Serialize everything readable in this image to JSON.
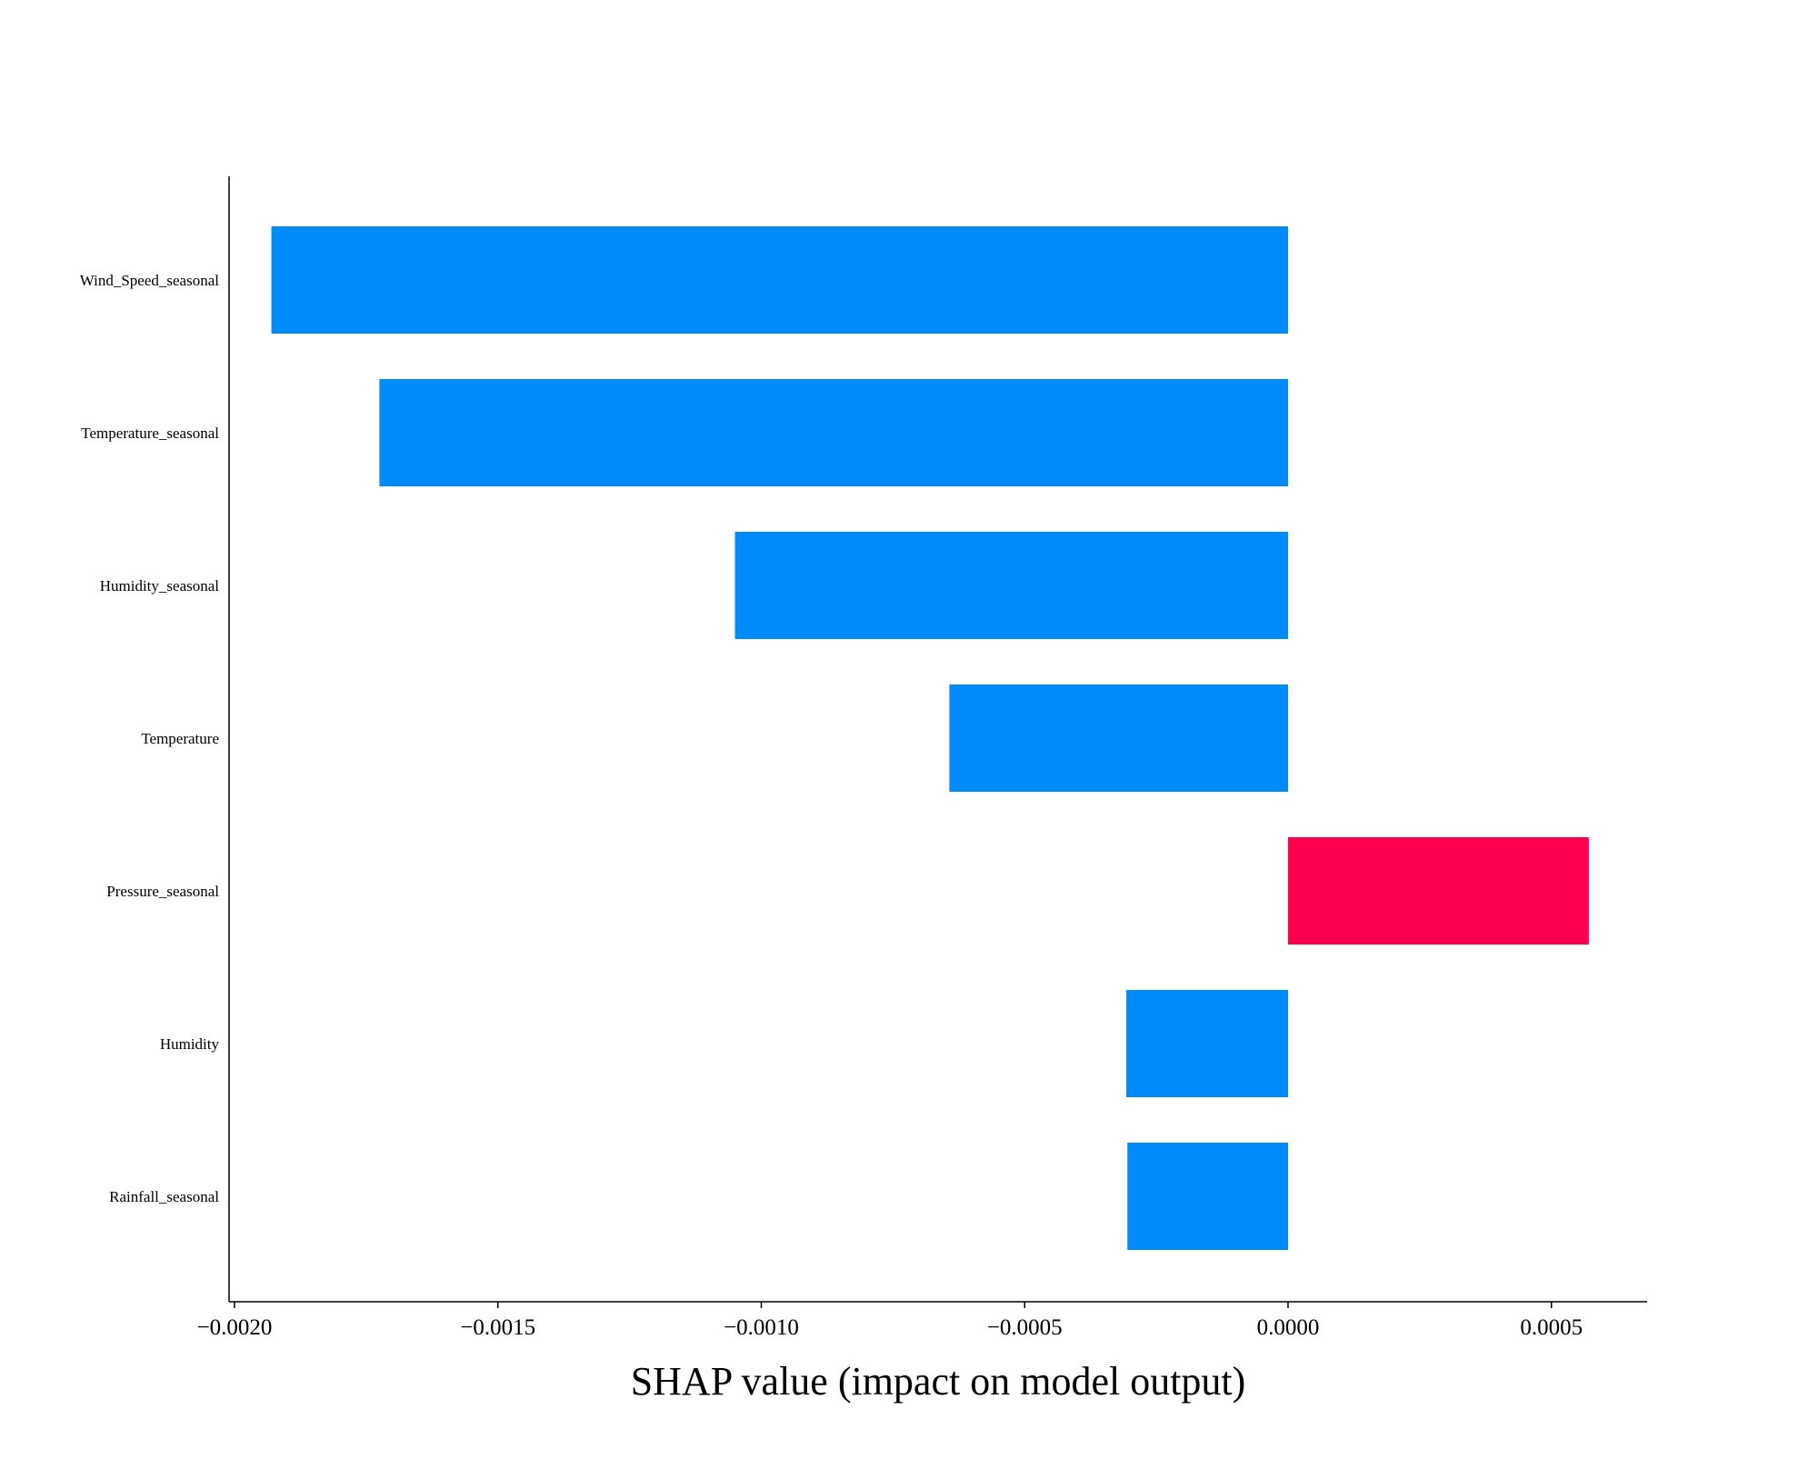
{
  "chart_data": {
    "type": "bar",
    "orientation": "horizontal",
    "title": "",
    "xlabel": "SHAP value (impact on model output)",
    "ylabel": "",
    "categories": [
      "Wind_Speed_seasonal",
      "Temperature_seasonal",
      "Humidity_seasonal",
      "Temperature",
      "Pressure_seasonal",
      "Humidity",
      "Rainfall_seasonal"
    ],
    "values": [
      -0.00193,
      -0.001725,
      -0.00105,
      -0.000643,
      0.000571,
      -0.000307,
      -0.000305
    ],
    "xlim": [
      -0.00205,
      0.0007
    ],
    "xticks": [
      -0.002,
      -0.0015,
      -0.001,
      -0.0005,
      0.0,
      0.0005
    ],
    "xtick_labels": [
      "−0.0020",
      "−0.0015",
      "−0.0010",
      "−0.0005",
      "0.0000",
      "0.0005"
    ],
    "colors": {
      "negative": "#008bfb",
      "positive": "#ff0051",
      "axis": "#000000"
    },
    "grid": false,
    "legend": "none"
  }
}
